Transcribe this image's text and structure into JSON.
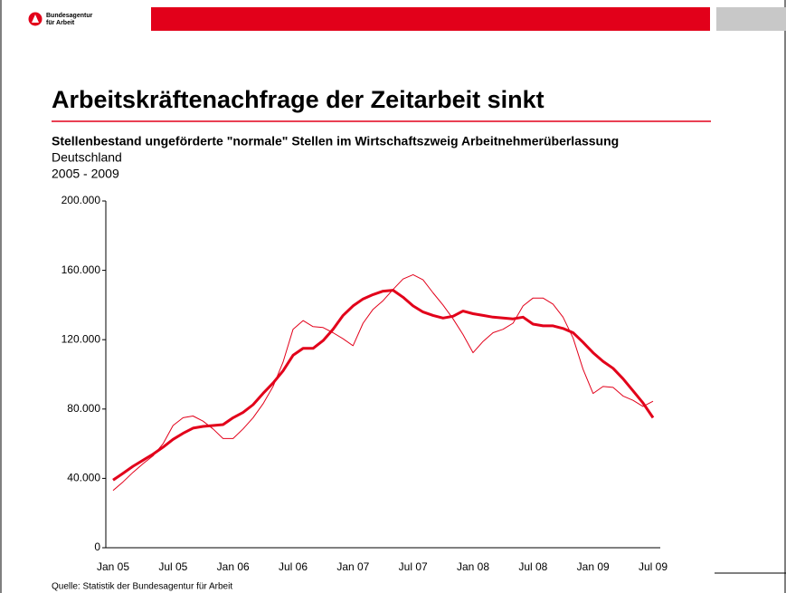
{
  "header": {
    "logo": [
      "Bundesagentur",
      "für Arbeit"
    ]
  },
  "chart_data": {
    "type": "line",
    "title": "Arbeitskräftenachfrage der Zeitarbeit sinkt",
    "subtitle": "Stellenbestand ungeförderte \"normale\" Stellen im Wirtschaftszweig Arbeitnehmerüberlassung",
    "region": "Deutschland",
    "period": "2005 - 2009",
    "categories": [
      "Jan 05",
      null,
      null,
      null,
      null,
      null,
      "Jul 05",
      null,
      null,
      null,
      null,
      null,
      "Jan 06",
      null,
      null,
      null,
      null,
      null,
      "Jul 06",
      null,
      null,
      null,
      null,
      null,
      "Jan 07",
      null,
      null,
      null,
      null,
      null,
      "Jul 07",
      null,
      null,
      null,
      null,
      null,
      "Jan 08",
      null,
      null,
      null,
      null,
      null,
      "Jul 08",
      null,
      null,
      null,
      null,
      null,
      "Jan 09",
      null,
      null,
      null,
      null,
      null,
      "Jul 09"
    ],
    "series": [
      {
        "color": "#e2001a",
        "width": 1,
        "values": [
          33000,
          38000,
          43500,
          48500,
          53000,
          60000,
          70500,
          75000,
          76000,
          73000,
          68500,
          63000,
          63000,
          68500,
          75000,
          83000,
          93000,
          107000,
          126000,
          131000,
          127500,
          127000,
          124000,
          120500,
          116500,
          129500,
          137500,
          142500,
          149000,
          155000,
          157500,
          154500,
          147000,
          140000,
          132000,
          123000,
          112500,
          119000,
          124000,
          126000,
          129500,
          139500,
          144000,
          144000,
          140500,
          133000,
          121000,
          103000,
          89000,
          93000,
          92500,
          87500,
          85000,
          81500,
          84500
        ]
      },
      {
        "color": "#e2001a",
        "width": 3,
        "values": [
          39000,
          43000,
          47000,
          50500,
          54000,
          58000,
          62500,
          66000,
          69000,
          70000,
          70500,
          71000,
          75000,
          78000,
          82500,
          89000,
          95000,
          102000,
          111000,
          115000,
          115000,
          119500,
          126000,
          134000,
          139500,
          143500,
          146000,
          148000,
          148500,
          144500,
          139500,
          136000,
          134000,
          132500,
          133500,
          136500,
          135000,
          134000,
          133000,
          132500,
          132000,
          133000,
          129000,
          128000,
          128000,
          126500,
          124000,
          118500,
          112500,
          107500,
          103500,
          97500,
          90500,
          83500,
          75000
        ]
      }
    ],
    "ylim": [
      0,
      200000
    ],
    "yticks": [
      0,
      {
        "value": 40000,
        "label": "40.000"
      },
      {
        "value": 80000,
        "label": "80.000"
      },
      {
        "value": 120000,
        "label": "120.000"
      },
      {
        "value": 160000,
        "label": "160.000"
      },
      {
        "value": 200000,
        "label": "200.000"
      }
    ],
    "grid": false
  },
  "footer": {
    "source": "Quelle: Statistik der Bundesagentur für Arbeit"
  }
}
